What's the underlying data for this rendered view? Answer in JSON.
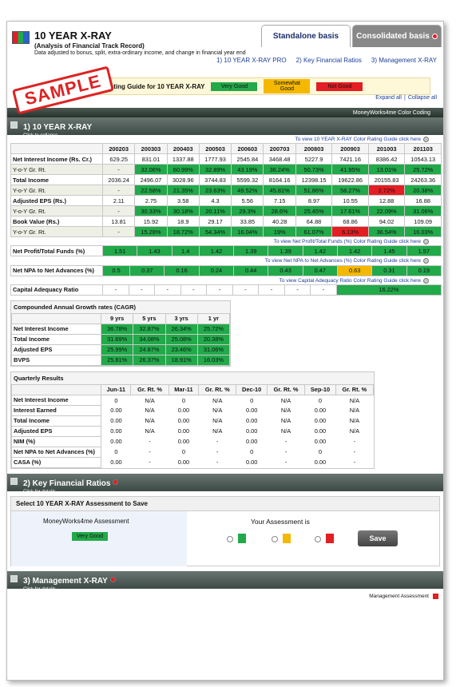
{
  "header": {
    "title": "10 YEAR X-RAY",
    "subtitle": "(Analysis of Financial Track Record)",
    "note": "Data adjusted to bonus, split, extra-ordinary income, and change in financial year end",
    "tabs": [
      "Standalone basis",
      "Consolidated basis"
    ],
    "links": [
      "1) 10 YEAR X-RAY PRO",
      "2) Key Financial Ratios",
      "3) Management X-RAY"
    ],
    "stamp": "SAMPLE",
    "rating_guide": {
      "label": "Rating Guide for 10 YEAR X-RAY",
      "levels": [
        {
          "label": "Very Good",
          "color": "#22a94a"
        },
        {
          "label": "Somewhat Good",
          "color": "#f5b800"
        },
        {
          "label": "Not Good",
          "color": "#e31e24"
        }
      ]
    },
    "expand": "Expand all",
    "separator": "|",
    "collapse": "Collapse all"
  },
  "section1": {
    "bar_label": "MoneyWorks4me Color Coding",
    "title": "1) 10 YEAR X-RAY",
    "hint": "Click to collapse"
  },
  "xray": {
    "guide_link": "To view 10 YEAR X-RAY Color Rating Guide click here",
    "years": [
      "200203",
      "200303",
      "200403",
      "200503",
      "200603",
      "200703",
      "200803",
      "200903",
      "201003",
      "201103"
    ],
    "rows": [
      {
        "label": "Net Interest Income (Rs. Cr.)",
        "values": [
          "629.25",
          "831.01",
          "1337.88",
          "1777.93",
          "2545.84",
          "3468.48",
          "5227.9",
          "7421.16",
          "8386.42",
          "10543.13"
        ],
        "colors": [
          null,
          null,
          null,
          null,
          null,
          null,
          null,
          null,
          null,
          null
        ]
      },
      {
        "label": "Y-o-Y Gr. Rt.",
        "values": [
          "-",
          "32.06%",
          "60.99%",
          "32.89%",
          "43.19%",
          "36.24%",
          "50.73%",
          "41.95%",
          "13.01%",
          "25.72%"
        ],
        "colors": [
          null,
          "#22a94a",
          "#22a94a",
          "#22a94a",
          "#22a94a",
          "#22a94a",
          "#22a94a",
          "#22a94a",
          "#22a94a",
          "#22a94a"
        ]
      },
      {
        "label": "Total Income",
        "values": [
          "2036.24",
          "2496.07",
          "3028.96",
          "3744.83",
          "5599.32",
          "8164.16",
          "12398.15",
          "19622.86",
          "20155.83",
          "24263.36"
        ],
        "colors": [
          null,
          null,
          null,
          null,
          null,
          null,
          null,
          null,
          null,
          null
        ]
      },
      {
        "label": "Y-o-Y Gr. Rt.",
        "values": [
          "-",
          "22.58%",
          "21.35%",
          "23.63%",
          "49.52%",
          "45.81%",
          "51.86%",
          "58.27%",
          "2.72%",
          "20.38%"
        ],
        "colors": [
          null,
          "#22a94a",
          "#22a94a",
          "#22a94a",
          "#22a94a",
          "#22a94a",
          "#22a94a",
          "#22a94a",
          "#e31e24",
          "#22a94a"
        ]
      },
      {
        "label": "Adjusted EPS (Rs.)",
        "values": [
          "2.11",
          "2.75",
          "3.58",
          "4.3",
          "5.56",
          "7.15",
          "8.97",
          "10.55",
          "12.88",
          "16.88"
        ],
        "colors": [
          null,
          null,
          null,
          null,
          null,
          null,
          null,
          null,
          null,
          null
        ]
      },
      {
        "label": "Y-o-Y Gr. Rt.",
        "values": [
          "-",
          "30.33%",
          "30.18%",
          "20.11%",
          "29.3%",
          "28.6%",
          "25.45%",
          "17.61%",
          "22.09%",
          "31.06%"
        ],
        "colors": [
          null,
          "#22a94a",
          "#22a94a",
          "#22a94a",
          "#22a94a",
          "#22a94a",
          "#22a94a",
          "#22a94a",
          "#22a94a",
          "#22a94a"
        ]
      },
      {
        "label": "Book Value (Rs.)",
        "values": [
          "13.81",
          "15.92",
          "18.9",
          "29.17",
          "33.85",
          "40.28",
          "64.88",
          "68.86",
          "94.02",
          "109.09"
        ],
        "colors": [
          null,
          null,
          null,
          null,
          null,
          null,
          null,
          null,
          null,
          null
        ]
      },
      {
        "label": "Y-o-Y Gr. Rt.",
        "values": [
          "-",
          "15.28%",
          "18.72%",
          "54.34%",
          "16.04%",
          "19%",
          "61.07%",
          "6.13%",
          "36.54%",
          "16.03%"
        ],
        "colors": [
          null,
          "#22a94a",
          "#22a94a",
          "#22a94a",
          "#22a94a",
          "#22a94a",
          "#22a94a",
          "#e31e24",
          "#22a94a",
          "#22a94a"
        ]
      }
    ],
    "ratio_blocks": [
      {
        "link": "To view Net Profit/Total Funds (%) Color Rating Guide click here",
        "label": "Net Profit/Total Funds (%)",
        "values": [
          "1.51",
          "1.43",
          "1.4",
          "1.42",
          "1.39",
          "1.39",
          "1.42",
          "1.42",
          "1.45",
          "1.57"
        ],
        "colors": [
          "#22a94a",
          "#22a94a",
          "#22a94a",
          "#22a94a",
          "#22a94a",
          "#22a94a",
          "#22a94a",
          "#22a94a",
          "#22a94a",
          "#22a94a"
        ]
      },
      {
        "link": "To view Net NPA to Net Advances (%) Color Rating Guide click here",
        "label": "Net NPA to Net Advances (%)",
        "values": [
          "0.5",
          "0.37",
          "0.16",
          "0.24",
          "0.44",
          "0.43",
          "0.47",
          "0.63",
          "0.31",
          "0.19"
        ],
        "colors": [
          "#22a94a",
          "#22a94a",
          "#22a94a",
          "#22a94a",
          "#22a94a",
          "#22a94a",
          "#22a94a",
          "#f5b800",
          "#22a94a",
          "#22a94a"
        ]
      },
      {
        "link": "To view Capital Adequacy Ratio Color Rating Guide click here",
        "label": "Capital Adequacy Ratio",
        "values": [
          "-",
          "-",
          "-",
          "-",
          "-",
          "-",
          "-",
          "-",
          "-",
          "16.22%"
        ],
        "colors": [
          null,
          null,
          null,
          null,
          null,
          null,
          null,
          null,
          null,
          "#22a94a"
        ]
      }
    ]
  },
  "cagr": {
    "title": "Compounded Annual Growth rates (CAGR)",
    "columns": [
      "9 yrs",
      "5 yrs",
      "3 yrs",
      "1 yr"
    ],
    "rows": [
      {
        "label": "Net Interest Income",
        "values": [
          "36.78%",
          "32.87%",
          "26.34%",
          "25.72%"
        ]
      },
      {
        "label": "Total Income",
        "values": [
          "31.69%",
          "34.08%",
          "25.08%",
          "20.38%"
        ]
      },
      {
        "label": "Adjusted EPS",
        "values": [
          "25.99%",
          "24.87%",
          "23.46%",
          "31.06%"
        ]
      },
      {
        "label": "BVPS",
        "values": [
          "25.81%",
          "26.37%",
          "18.91%",
          "16.03%"
        ]
      }
    ],
    "color": "#22a94a"
  },
  "quarterly": {
    "title": "Quarterly Results",
    "columns": [
      "Jun-11",
      "Gr. Rt. %",
      "Mar-11",
      "Gr. Rt. %",
      "Dec-10",
      "Gr. Rt. %",
      "Sep-10",
      "Gr. Rt. %"
    ],
    "rows": [
      {
        "label": "Net Interest Income",
        "values": [
          "0",
          "N/A",
          "0",
          "N/A",
          "0",
          "N/A",
          "0",
          "N/A"
        ]
      },
      {
        "label": "Interest Earned",
        "values": [
          "0.00",
          "N/A",
          "0.00",
          "N/A",
          "0.00",
          "N/A",
          "0.00",
          "N/A"
        ]
      },
      {
        "label": "Total Income",
        "values": [
          "0.00",
          "N/A",
          "0.00",
          "N/A",
          "0.00",
          "N/A",
          "0.00",
          "N/A"
        ]
      },
      {
        "label": "Adjusted EPS",
        "values": [
          "0.00",
          "N/A",
          "0.00",
          "N/A",
          "0.00",
          "N/A",
          "0.00",
          "N/A"
        ]
      },
      {
        "label": "NIM (%)",
        "values": [
          "0.00",
          "-",
          "0.00",
          "-",
          "0.00",
          "-",
          "0.00",
          "-"
        ]
      },
      {
        "label": "Net NPA to Net Advances (%)",
        "values": [
          "0",
          "-",
          "0",
          "-",
          "0",
          "-",
          "0",
          "-"
        ]
      },
      {
        "label": "CASA (%)",
        "values": [
          "0.00",
          "-",
          "0.00",
          "-",
          "0.00",
          "-",
          "0.00",
          "-"
        ]
      }
    ]
  },
  "section2": {
    "title": "2) Key Financial Ratios",
    "hint": "Click for details"
  },
  "assessment": {
    "title": "Select 10 YEAR X-RAY Assessment to Save",
    "mw_label": "MoneyWorks4me Assessment",
    "mw_value": "Very Good",
    "your_label": "Your Assessment is",
    "save": "Save"
  },
  "section3": {
    "title": "3) Management X-RAY",
    "hint": "Click for details",
    "footer": "Management Assessment"
  }
}
